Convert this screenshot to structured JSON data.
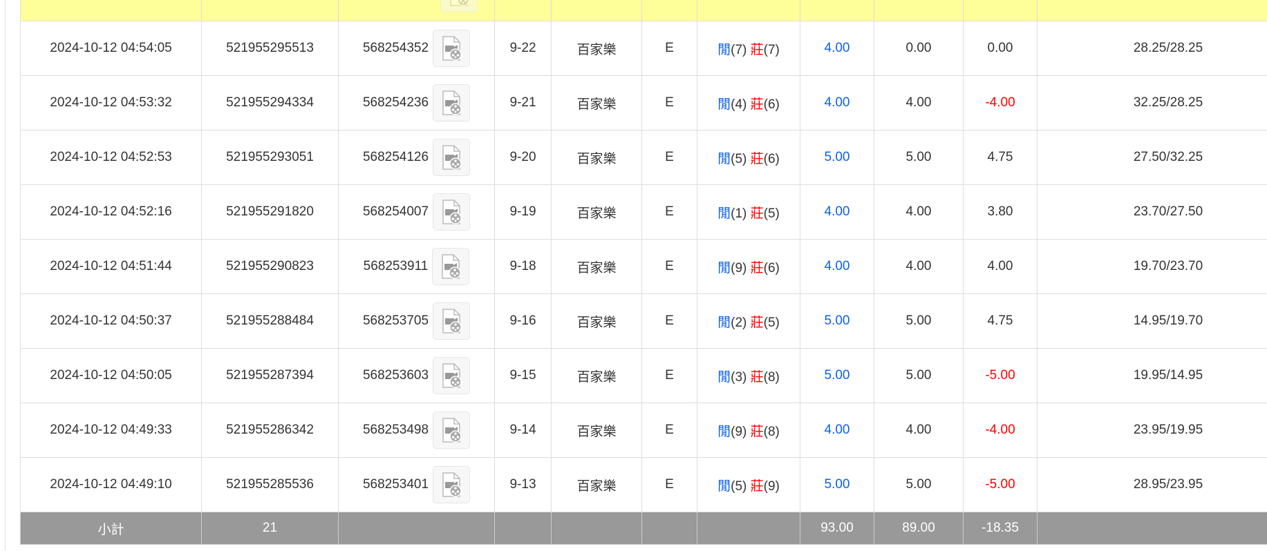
{
  "colors": {
    "bet_blue": "#0a60f0",
    "loss_red": "#ff0000",
    "highlight_row": "#ffff99",
    "subtotal_bg": "#999999"
  },
  "rows": [
    {
      "time": "2024-10-12 04:54:05",
      "bet_id": "521955295513",
      "round_id": "568254352",
      "table": "9-22",
      "game": "百家樂",
      "type": "E",
      "player_label": "閒",
      "player": "(7)",
      "banker_label": "莊",
      "banker": "(7)",
      "bet": "4.00",
      "valid": "0.00",
      "win": "0.00",
      "win_neg": false,
      "balance": "28.25/28.25"
    },
    {
      "time": "2024-10-12 04:53:32",
      "bet_id": "521955294334",
      "round_id": "568254236",
      "table": "9-21",
      "game": "百家樂",
      "type": "E",
      "player_label": "閒",
      "player": "(4)",
      "banker_label": "莊",
      "banker": "(6)",
      "bet": "4.00",
      "valid": "4.00",
      "win": "-4.00",
      "win_neg": true,
      "balance": "32.25/28.25"
    },
    {
      "time": "2024-10-12 04:52:53",
      "bet_id": "521955293051",
      "round_id": "568254126",
      "table": "9-20",
      "game": "百家樂",
      "type": "E",
      "player_label": "閒",
      "player": "(5)",
      "banker_label": "莊",
      "banker": "(6)",
      "bet": "5.00",
      "valid": "5.00",
      "win": "4.75",
      "win_neg": false,
      "balance": "27.50/32.25"
    },
    {
      "time": "2024-10-12 04:52:16",
      "bet_id": "521955291820",
      "round_id": "568254007",
      "table": "9-19",
      "game": "百家樂",
      "type": "E",
      "player_label": "閒",
      "player": "(1)",
      "banker_label": "莊",
      "banker": "(5)",
      "bet": "4.00",
      "valid": "4.00",
      "win": "3.80",
      "win_neg": false,
      "balance": "23.70/27.50"
    },
    {
      "time": "2024-10-12 04:51:44",
      "bet_id": "521955290823",
      "round_id": "568253911",
      "table": "9-18",
      "game": "百家樂",
      "type": "E",
      "player_label": "閒",
      "player": "(9)",
      "banker_label": "莊",
      "banker": "(6)",
      "bet": "4.00",
      "valid": "4.00",
      "win": "4.00",
      "win_neg": false,
      "balance": "19.70/23.70"
    },
    {
      "time": "2024-10-12 04:50:37",
      "bet_id": "521955288484",
      "round_id": "568253705",
      "table": "9-16",
      "game": "百家樂",
      "type": "E",
      "player_label": "閒",
      "player": "(2)",
      "banker_label": "莊",
      "banker": "(5)",
      "bet": "5.00",
      "valid": "5.00",
      "win": "4.75",
      "win_neg": false,
      "balance": "14.95/19.70"
    },
    {
      "time": "2024-10-12 04:50:05",
      "bet_id": "521955287394",
      "round_id": "568253603",
      "table": "9-15",
      "game": "百家樂",
      "type": "E",
      "player_label": "閒",
      "player": "(3)",
      "banker_label": "莊",
      "banker": "(8)",
      "bet": "5.00",
      "valid": "5.00",
      "win": "-5.00",
      "win_neg": true,
      "balance": "19.95/14.95"
    },
    {
      "time": "2024-10-12 04:49:33",
      "bet_id": "521955286342",
      "round_id": "568253498",
      "table": "9-14",
      "game": "百家樂",
      "type": "E",
      "player_label": "閒",
      "player": "(9)",
      "banker_label": "莊",
      "banker": "(8)",
      "bet": "4.00",
      "valid": "4.00",
      "win": "-4.00",
      "win_neg": true,
      "balance": "23.95/19.95"
    },
    {
      "time": "2024-10-12 04:49:10",
      "bet_id": "521955285536",
      "round_id": "568253401",
      "table": "9-13",
      "game": "百家樂",
      "type": "E",
      "player_label": "閒",
      "player": "(5)",
      "banker_label": "莊",
      "banker": "(9)",
      "bet": "5.00",
      "valid": "5.00",
      "win": "-5.00",
      "win_neg": true,
      "balance": "28.95/23.95"
    }
  ],
  "subtotal": {
    "label": "小計",
    "count": "21",
    "bet": "93.00",
    "valid": "89.00",
    "win": "-18.35"
  }
}
